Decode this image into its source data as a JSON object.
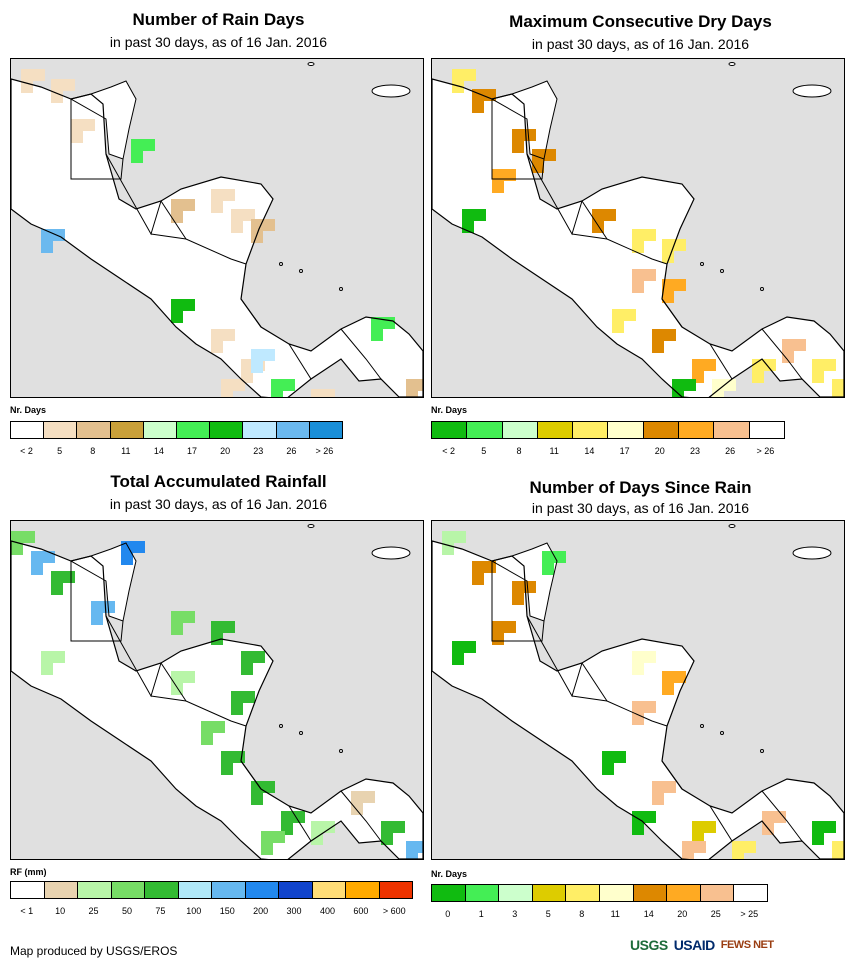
{
  "panels": {
    "rain_days": {
      "title": "Number of Rain Days",
      "subtitle": "in past 30 days, as of 16 Jan. 2016",
      "legend_title": "Nr. Days",
      "legend_labels": [
        "< 2",
        "5",
        "8",
        "11",
        "14",
        "17",
        "20",
        "23",
        "26",
        "> 26"
      ],
      "legend_colors": [
        "#ffffff",
        "#f5dfc2",
        "#e3c08f",
        "#c9a03a",
        "#ccffcc",
        "#44ee55",
        "#10bb10",
        "#bfe9ff",
        "#6bb9ef",
        "#1a8fd8"
      ],
      "map_fill": "rain_days"
    },
    "dry_days": {
      "title": "Maximum Consecutive Dry Days",
      "subtitle": "in past 30 days, as of 16 Jan. 2016",
      "legend_title": "Nr. Days",
      "legend_labels": [
        "< 2",
        "5",
        "8",
        "11",
        "14",
        "17",
        "20",
        "23",
        "26",
        "> 26"
      ],
      "legend_colors": [
        "#10bb10",
        "#44ee55",
        "#ccffcc",
        "#ddcc00",
        "#ffee66",
        "#ffffcc",
        "#dd8800",
        "#ffaa22",
        "#f8c090",
        "#ffffff"
      ],
      "map_fill": "dry_days"
    },
    "rainfall": {
      "title": "Total Accumulated Rainfall",
      "subtitle": "in past 30 days, as of 16 Jan. 2016",
      "legend_title": "RF (mm)",
      "legend_labels": [
        "< 1",
        "10",
        "25",
        "50",
        "75",
        "100",
        "150",
        "200",
        "300",
        "400",
        "600",
        "> 600"
      ],
      "legend_colors": [
        "#ffffff",
        "#e8d3b0",
        "#b8f5a8",
        "#77dd66",
        "#33bb33",
        "#b0e8f8",
        "#66b8f0",
        "#2288ee",
        "#1144cc",
        "#ffdd77",
        "#ffaa00",
        "#ee3300"
      ],
      "map_fill": "rainfall"
    },
    "since_rain": {
      "title": "Number of Days Since Rain",
      "subtitle": "in past 30 days, as of 16 Jan. 2016",
      "legend_title": "Nr. Days",
      "legend_labels": [
        "0",
        "1",
        "3",
        "5",
        "8",
        "11",
        "14",
        "20",
        "25",
        "> 25"
      ],
      "legend_colors": [
        "#10bb10",
        "#44ee55",
        "#ccffcc",
        "#ddcc00",
        "#ffee66",
        "#ffffcc",
        "#dd8800",
        "#ffaa22",
        "#f8c090",
        "#ffffff"
      ],
      "map_fill": "since_rain"
    }
  },
  "credit": "Map produced by USGS/EROS",
  "logos": {
    "usgs": "USGS",
    "usaid": "USAID",
    "fews": "FEWS NET"
  }
}
